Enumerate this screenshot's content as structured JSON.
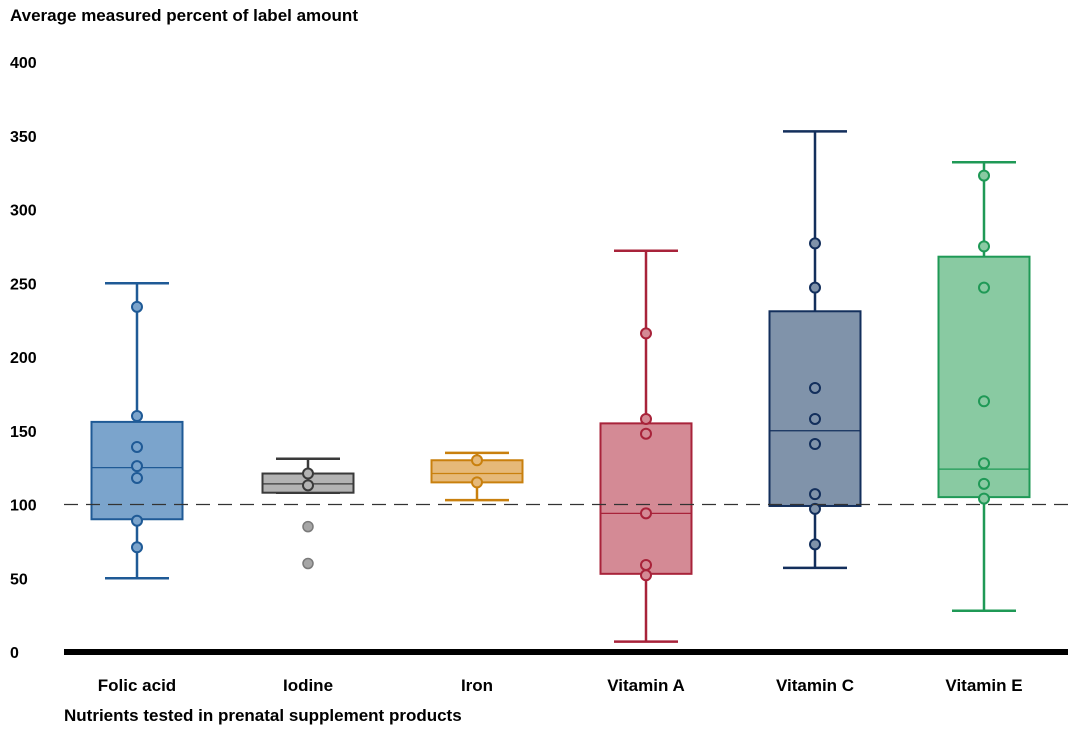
{
  "chart_data": {
    "type": "box",
    "ylabel": "Average measured percent of label amount",
    "xlabel": "Nutrients tested in prenatal supplement products",
    "ylim": [
      0,
      400
    ],
    "yticks": [
      0,
      50,
      100,
      150,
      200,
      250,
      300,
      350,
      400
    ],
    "reference_line": 100,
    "grid": false,
    "categories": [
      "Folic acid",
      "Iodine",
      "Iron",
      "Vitamin A",
      "Vitamin C",
      "Vitamin E"
    ],
    "series": [
      {
        "category": "Folic acid",
        "color": "#1f5a96",
        "fill": "#7ba4cc",
        "whisker_low": 50,
        "q1": 90,
        "median": 125,
        "q3": 156,
        "whisker_high": 250,
        "points": [
          234,
          160,
          139,
          126,
          118,
          89,
          71
        ],
        "outliers": []
      },
      {
        "category": "Iodine",
        "color": "#3a3a3a",
        "fill": "#b3b3b3",
        "whisker_low": 108,
        "q1": 108,
        "median": 114,
        "q3": 121,
        "whisker_high": 131,
        "points": [
          121,
          113
        ],
        "outliers": [
          85,
          60
        ]
      },
      {
        "category": "Iron",
        "color": "#c9800e",
        "fill": "#e6b979",
        "whisker_low": 103,
        "q1": 115,
        "median": 121,
        "q3": 130,
        "whisker_high": 135,
        "points": [
          130,
          115
        ],
        "outliers": []
      },
      {
        "category": "Vitamin A",
        "color": "#a8233a",
        "fill": "#d48a95",
        "whisker_low": 7,
        "q1": 53,
        "median": 94,
        "q3": 155,
        "whisker_high": 272,
        "points": [
          216,
          158,
          148,
          94,
          59,
          52
        ],
        "outliers": []
      },
      {
        "category": "Vitamin C",
        "color": "#132f5c",
        "fill": "#8093aa",
        "whisker_low": 57,
        "q1": 99,
        "median": 150,
        "q3": 231,
        "whisker_high": 353,
        "points": [
          277,
          247,
          179,
          158,
          141,
          107,
          97,
          73
        ],
        "outliers": []
      },
      {
        "category": "Vitamin E",
        "color": "#1f9956",
        "fill": "#89caa2",
        "whisker_low": 28,
        "q1": 105,
        "median": 124,
        "q3": 268,
        "whisker_high": 332,
        "points": [
          323,
          275,
          247,
          170,
          128,
          114,
          104
        ],
        "outliers": []
      }
    ]
  }
}
